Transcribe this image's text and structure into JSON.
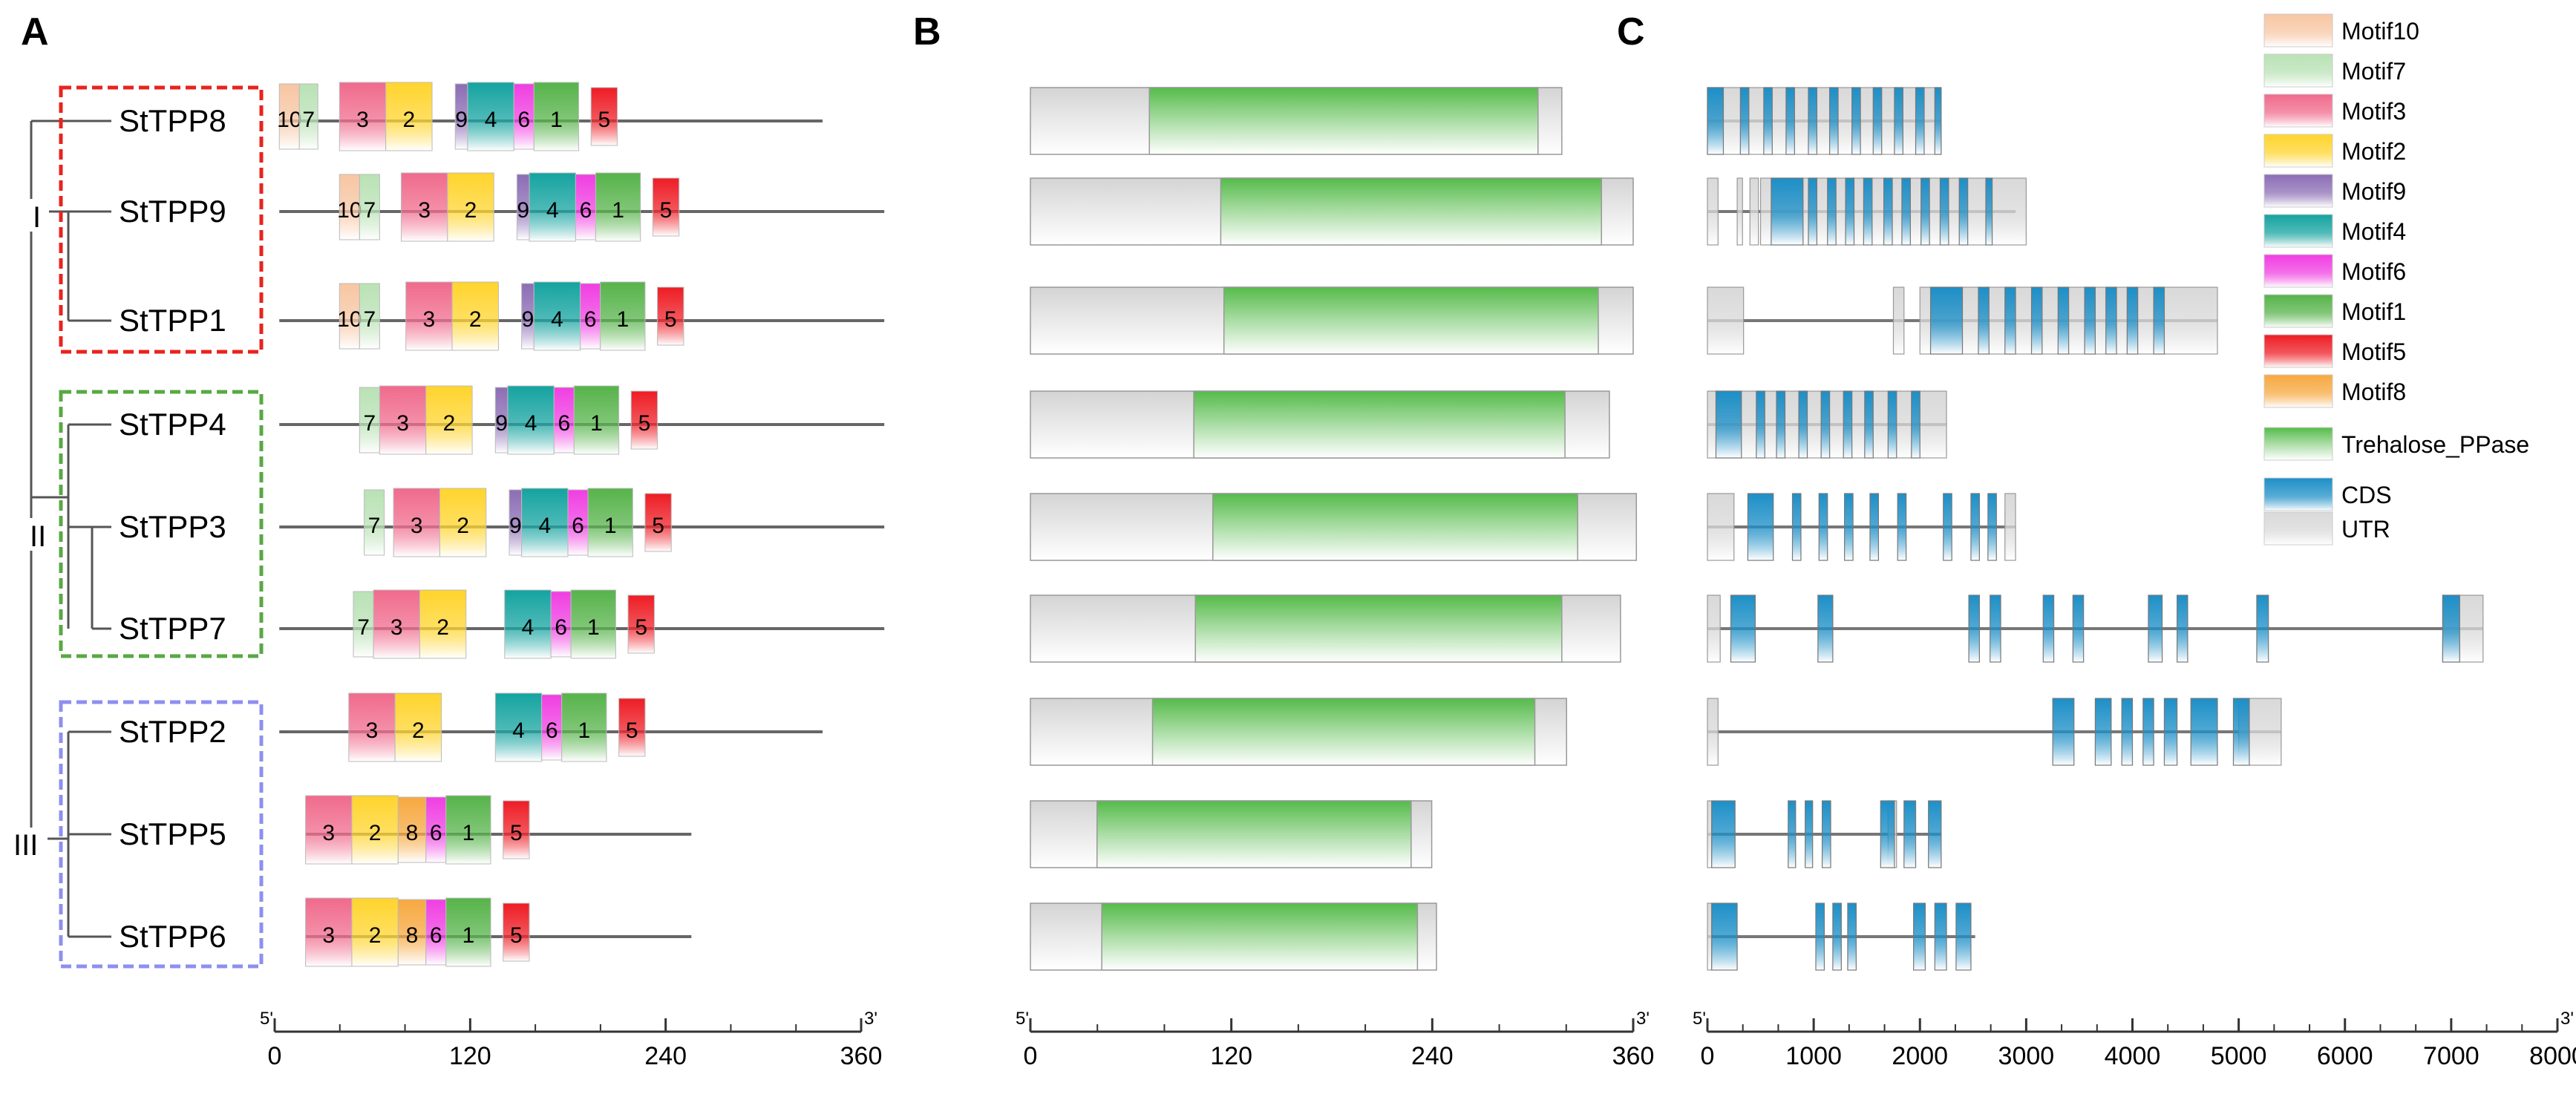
{
  "panels": {
    "A": "A",
    "B": "B",
    "C": "C"
  },
  "groups": [
    "I",
    "II",
    "III"
  ],
  "genes": [
    "StTPP8",
    "StTPP9",
    "StTPP1",
    "StTPP4",
    "StTPP3",
    "StTPP7",
    "StTPP2",
    "StTPP5",
    "StTPP6"
  ],
  "colors": {
    "group_I": "#e8231e",
    "group_II": "#58a844",
    "group_III": "#8f8ff0",
    "motif10": "#f7c6a3",
    "motif7": "#b9e2b5",
    "motif3": "#f06a8c",
    "motif2": "#ffd42c",
    "motif9": "#8c6db5",
    "motif4": "#14a3a0",
    "motif6": "#f03ee2",
    "motif1": "#56b34a",
    "motif5": "#ee1c24",
    "motif8": "#f7a840",
    "domain": "#55bb4a",
    "protein_body": "#d9d9d9",
    "cds": "#1d8fc7",
    "utr": "#d9d9d9"
  },
  "legend": [
    {
      "key": "motif10",
      "label": "Motif10"
    },
    {
      "key": "motif7",
      "label": "Motif7"
    },
    {
      "key": "motif3",
      "label": "Motif3"
    },
    {
      "key": "motif2",
      "label": "Motif2"
    },
    {
      "key": "motif9",
      "label": "Motif9"
    },
    {
      "key": "motif4",
      "label": "Motif4"
    },
    {
      "key": "motif6",
      "label": "Motif6"
    },
    {
      "key": "motif1",
      "label": "Motif1"
    },
    {
      "key": "motif5",
      "label": "Motif5"
    },
    {
      "key": "motif8",
      "label": "Motif8"
    },
    {
      "key": "domain",
      "label": "Trehalose_PPase"
    },
    {
      "key": "cds",
      "label": "CDS"
    },
    {
      "key": "utr",
      "label": "UTR"
    }
  ],
  "motif_panel": {
    "axis": {
      "min": 0,
      "max": 380,
      "ticks": [
        "0",
        "120",
        "240",
        "360"
      ],
      "left_end": "5'",
      "right_end": "3'"
    },
    "genes": [
      {
        "offset": 3,
        "length": 355,
        "motifs": [
          [
            "10",
            3,
            16
          ],
          [
            "7",
            16,
            28
          ],
          [
            "3",
            42,
            72
          ],
          [
            "2",
            72,
            102
          ],
          [
            "9",
            117,
            125
          ],
          [
            "4",
            125,
            155
          ],
          [
            "6",
            155,
            168
          ],
          [
            "1",
            168,
            197
          ],
          [
            "5",
            205,
            222
          ]
        ]
      },
      {
        "offset": 3,
        "length": 395,
        "motifs": [
          [
            "10",
            42,
            55
          ],
          [
            "7",
            55,
            68
          ],
          [
            "3",
            82,
            112
          ],
          [
            "2",
            112,
            142
          ],
          [
            "9",
            157,
            165
          ],
          [
            "4",
            165,
            195
          ],
          [
            "6",
            195,
            208
          ],
          [
            "1",
            208,
            237
          ],
          [
            "5",
            245,
            262
          ]
        ]
      },
      {
        "offset": 3,
        "length": 395,
        "motifs": [
          [
            "10",
            42,
            55
          ],
          [
            "7",
            55,
            68
          ],
          [
            "3",
            85,
            115
          ],
          [
            "2",
            115,
            145
          ],
          [
            "9",
            160,
            168
          ],
          [
            "4",
            168,
            198
          ],
          [
            "6",
            198,
            211
          ],
          [
            "1",
            211,
            240
          ],
          [
            "5",
            248,
            265
          ]
        ]
      },
      {
        "offset": 3,
        "length": 395,
        "motifs": [
          [
            "7",
            55,
            68
          ],
          [
            "3",
            68,
            98
          ],
          [
            "2",
            98,
            128
          ],
          [
            "9",
            143,
            151
          ],
          [
            "4",
            151,
            181
          ],
          [
            "6",
            181,
            194
          ],
          [
            "1",
            194,
            223
          ],
          [
            "5",
            231,
            248
          ]
        ]
      },
      {
        "offset": 3,
        "length": 395,
        "motifs": [
          [
            "7",
            58,
            71
          ],
          [
            "3",
            77,
            107
          ],
          [
            "2",
            107,
            137
          ],
          [
            "9",
            152,
            160
          ],
          [
            "4",
            160,
            190
          ],
          [
            "6",
            190,
            203
          ],
          [
            "1",
            203,
            232
          ],
          [
            "5",
            240,
            257
          ]
        ]
      },
      {
        "offset": 3,
        "length": 395,
        "motifs": [
          [
            "7",
            51,
            64
          ],
          [
            "3",
            64,
            94
          ],
          [
            "2",
            94,
            124
          ],
          [
            "4",
            149,
            179
          ],
          [
            "6",
            179,
            192
          ],
          [
            "1",
            192,
            221
          ],
          [
            "5",
            229,
            246
          ]
        ]
      },
      {
        "offset": 3,
        "length": 355,
        "motifs": [
          [
            "3",
            48,
            78
          ],
          [
            "2",
            78,
            108
          ],
          [
            "4",
            143,
            173
          ],
          [
            "6",
            173,
            186
          ],
          [
            "1",
            186,
            215
          ],
          [
            "5",
            223,
            240
          ]
        ]
      },
      {
        "offset": 20,
        "length": 270,
        "motifs": [
          [
            "3",
            20,
            50
          ],
          [
            "2",
            50,
            80
          ],
          [
            "8",
            80,
            98
          ],
          [
            "6",
            98,
            111
          ],
          [
            "1",
            111,
            140
          ],
          [
            "5",
            148,
            165
          ]
        ]
      },
      {
        "offset": 20,
        "length": 270,
        "motifs": [
          [
            "3",
            20,
            50
          ],
          [
            "2",
            50,
            80
          ],
          [
            "8",
            80,
            98
          ],
          [
            "6",
            98,
            111
          ],
          [
            "1",
            111,
            140
          ],
          [
            "5",
            148,
            165
          ]
        ]
      }
    ]
  },
  "domain_panel": {
    "axis": {
      "min": 0,
      "max": 380,
      "ticks": [
        "0",
        "120",
        "240",
        "360"
      ],
      "left_end": "5'",
      "right_end": "3'"
    },
    "genes": [
      {
        "length": 335,
        "domain": [
          75,
          320
        ]
      },
      {
        "length": 380,
        "domain": [
          120,
          360
        ]
      },
      {
        "length": 380,
        "domain": [
          122,
          358
        ]
      },
      {
        "length": 365,
        "domain": [
          103,
          337
        ]
      },
      {
        "length": 382,
        "domain": [
          115,
          345
        ]
      },
      {
        "length": 372,
        "domain": [
          104,
          335
        ]
      },
      {
        "length": 338,
        "domain": [
          77,
          318
        ]
      },
      {
        "length": 253,
        "domain": [
          42,
          240
        ]
      },
      {
        "length": 256,
        "domain": [
          45,
          244
        ]
      }
    ]
  },
  "structure_panel": {
    "axis": {
      "min": 0,
      "max": 8000,
      "ticks": [
        "0",
        "1000",
        "2000",
        "3000",
        "4000",
        "5000",
        "6000",
        "7000",
        "8000"
      ],
      "left_end": "5'",
      "right_end": "3'"
    },
    "genes": [
      {
        "length": 2200,
        "utr": [
          [
            0,
            2200
          ]
        ],
        "cds": [
          [
            0,
            150
          ],
          [
            310,
            390
          ],
          [
            530,
            610
          ],
          [
            740,
            820
          ],
          [
            950,
            1030
          ],
          [
            1150,
            1230
          ],
          [
            1360,
            1440
          ],
          [
            1560,
            1640
          ],
          [
            1760,
            1840
          ],
          [
            1960,
            2040
          ],
          [
            2140,
            2200
          ]
        ]
      },
      {
        "length": 2900,
        "utr": [
          [
            0,
            100
          ],
          [
            280,
            330
          ],
          [
            400,
            480
          ],
          [
            500,
            3000
          ]
        ],
        "cds": [
          [
            600,
            900
          ],
          [
            950,
            1030
          ],
          [
            1130,
            1210
          ],
          [
            1300,
            1380
          ],
          [
            1470,
            1550
          ],
          [
            1660,
            1740
          ],
          [
            1830,
            1910
          ],
          [
            2010,
            2090
          ],
          [
            2190,
            2270
          ],
          [
            2370,
            2450
          ],
          [
            2620,
            2680
          ]
        ]
      },
      {
        "length": 4800,
        "utr": [
          [
            0,
            340
          ],
          [
            1750,
            1850
          ],
          [
            2000,
            4800
          ]
        ],
        "cds": [
          [
            2100,
            2400
          ],
          [
            2550,
            2650
          ],
          [
            2800,
            2900
          ],
          [
            3050,
            3150
          ],
          [
            3300,
            3400
          ],
          [
            3550,
            3650
          ],
          [
            3750,
            3850
          ],
          [
            3950,
            4050
          ],
          [
            4200,
            4300
          ]
        ]
      },
      {
        "length": 2250,
        "utr": [
          [
            0,
            2250
          ]
        ],
        "cds": [
          [
            80,
            320
          ],
          [
            460,
            540
          ],
          [
            650,
            730
          ],
          [
            860,
            940
          ],
          [
            1070,
            1150
          ],
          [
            1280,
            1360
          ],
          [
            1480,
            1560
          ],
          [
            1700,
            1780
          ],
          [
            1920,
            2000
          ]
        ]
      },
      {
        "length": 2900,
        "utr": [
          [
            0,
            250
          ],
          [
            2800,
            2900
          ]
        ],
        "cds": [
          [
            380,
            620
          ],
          [
            800,
            880
          ],
          [
            1050,
            1130
          ],
          [
            1290,
            1370
          ],
          [
            1530,
            1610
          ],
          [
            1790,
            1870
          ],
          [
            2220,
            2300
          ],
          [
            2480,
            2560
          ],
          [
            2640,
            2720
          ]
        ]
      },
      {
        "length": 7300,
        "utr": [
          [
            0,
            120
          ],
          [
            6920,
            7300
          ]
        ],
        "cds": [
          [
            220,
            450
          ],
          [
            1040,
            1180
          ],
          [
            2460,
            2560
          ],
          [
            2660,
            2760
          ],
          [
            3160,
            3260
          ],
          [
            3440,
            3540
          ],
          [
            4150,
            4280
          ],
          [
            4420,
            4520
          ],
          [
            5170,
            5280
          ],
          [
            6920,
            7080
          ]
        ]
      },
      {
        "length": 5400,
        "utr": [
          [
            0,
            100
          ],
          [
            5000,
            5400
          ]
        ],
        "cds": [
          [
            3250,
            3450
          ],
          [
            3650,
            3800
          ],
          [
            3900,
            4000
          ],
          [
            4100,
            4200
          ],
          [
            4300,
            4420
          ],
          [
            4550,
            4800
          ],
          [
            4950,
            5100
          ]
        ]
      },
      {
        "length": 2200,
        "utr": [
          [
            0,
            40
          ],
          [
            1700,
            1780
          ]
        ],
        "cds": [
          [
            40,
            260
          ],
          [
            760,
            830
          ],
          [
            920,
            990
          ],
          [
            1080,
            1160
          ],
          [
            1630,
            1760
          ],
          [
            1850,
            1960
          ],
          [
            2080,
            2200
          ]
        ]
      },
      {
        "length": 2520,
        "utr": [
          [
            0,
            40
          ]
        ],
        "cds": [
          [
            40,
            280
          ],
          [
            1020,
            1100
          ],
          [
            1180,
            1260
          ],
          [
            1320,
            1400
          ],
          [
            1940,
            2050
          ],
          [
            2140,
            2250
          ],
          [
            2340,
            2480
          ]
        ]
      }
    ]
  }
}
